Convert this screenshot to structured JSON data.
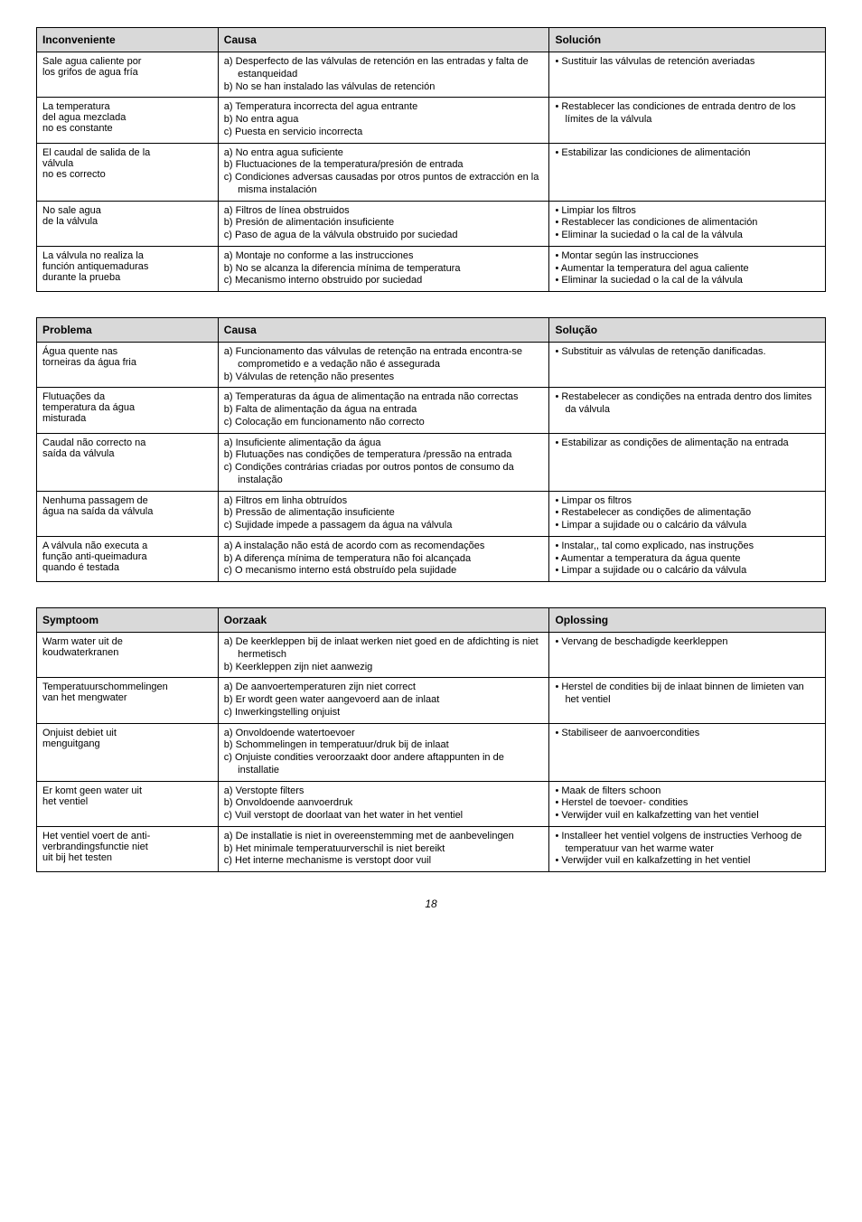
{
  "tables": [
    {
      "headers": [
        "Inconveniente",
        "Causa",
        "Solución"
      ],
      "rows": [
        {
          "c1": [
            "Sale agua caliente por",
            "los grifos de agua fría"
          ],
          "c2": [
            "a) Desperfecto de las válvulas de retención en las entradas y falta de estanqueidad",
            "b) No se han instalado las válvulas de retención"
          ],
          "c3": [
            "Sustituir las válvulas de retención averiadas"
          ]
        },
        {
          "c1": [
            "La temperatura",
            "del agua mezclada",
            "no es constante"
          ],
          "c2": [
            "a) Temperatura incorrecta del agua entrante",
            "b) No entra agua",
            "c) Puesta en servicio incorrecta"
          ],
          "c3": [
            "Restablecer las condiciones de entrada dentro de los límites de la válvula"
          ]
        },
        {
          "c1": [
            "El caudal de salida de la",
            "válvula",
            "no es correcto"
          ],
          "c2": [
            "a) No entra agua suficiente",
            "b) Fluctuaciones de la temperatura/presión de entrada",
            "c) Condiciones adversas causadas por otros puntos de extracción en la misma instalación"
          ],
          "c3": [
            "Estabilizar las condiciones de alimentación"
          ]
        },
        {
          "c1": [
            "No sale agua",
            "de la válvula"
          ],
          "c2": [
            "a) Filtros de línea obstruidos",
            "b) Presión de alimentación insuficiente",
            "c) Paso de agua de la válvula obstruido por suciedad"
          ],
          "c3": [
            "Limpiar los filtros",
            "Restablecer las condiciones de alimentación",
            "Eliminar la suciedad o la cal de la válvula"
          ]
        },
        {
          "c1": [
            "La válvula no realiza la",
            "función antiquemaduras",
            "durante la prueba"
          ],
          "c2": [
            "a) Montaje no conforme a las instrucciones",
            "b) No se alcanza la diferencia mínima de temperatura",
            "c) Mecanismo interno obstruido por suciedad"
          ],
          "c3": [
            "Montar según las instrucciones",
            "Aumentar la temperatura del agua caliente",
            "Eliminar la suciedad o la cal de la válvula"
          ]
        }
      ]
    },
    {
      "headers": [
        "Problema",
        "Causa",
        "Solução"
      ],
      "rows": [
        {
          "c1": [
            "Água quente nas",
            "torneiras da água fria"
          ],
          "c2": [
            "a) Funcionamento das válvulas de retenção na entrada encontra-se comprometido e a vedação não é assegurada",
            "b) Válvulas de retenção não presentes"
          ],
          "c3": [
            "Substituir as válvulas de retenção danificadas."
          ]
        },
        {
          "c1": [
            "Flutuações da",
            "temperatura da água",
            "misturada"
          ],
          "c2": [
            "a) Temperaturas da água de alimentação na entrada não correctas",
            "b) Falta de alimentação da água na entrada",
            "c) Colocação em funcionamento não correcto"
          ],
          "c3": [
            "Restabelecer as condições na entrada dentro dos limites da válvula"
          ]
        },
        {
          "c1": [
            "Caudal não correcto na",
            "saída da válvula"
          ],
          "c2": [
            "a) Insuficiente alimentação da água",
            "b) Flutuações nas condições de temperatura /pressão na entrada",
            "c) Condições contrárias criadas por outros pontos de consumo da instalação"
          ],
          "c3": [
            "Estabilizar as condições de alimentação na entrada"
          ]
        },
        {
          "c1": [
            "Nenhuma passagem de",
            "água na saída da válvula"
          ],
          "c2": [
            "a) Filtros em linha obtruídos",
            "b) Pressão de alimentação insuficiente",
            "c) Sujidade impede a passagem da água na válvula"
          ],
          "c3": [
            "Limpar os filtros",
            "Restabelecer as condições de alimentação",
            "Limpar a sujidade ou o calcário da válvula"
          ]
        },
        {
          "c1": [
            "A válvula não executa a",
            "função anti-queimadura",
            "quando é testada"
          ],
          "c2": [
            "a) A instalação não está de acordo com as recomendações",
            "b) A diferença mínima de temperatura não foi alcançada",
            "c) O mecanismo interno está obstruído pela sujidade"
          ],
          "c3": [
            "Instalar,, tal como explicado, nas instruções",
            "Aumentar a temperatura da água quente",
            "Limpar a sujidade ou o calcário da válvula"
          ]
        }
      ]
    },
    {
      "headers": [
        "Symptoom",
        "Oorzaak",
        "Oplossing"
      ],
      "rows": [
        {
          "c1": [
            "Warm water uit de",
            "koudwaterkranen"
          ],
          "c2": [
            "a) De keerkleppen bij de inlaat werken niet goed en de afdichting is niet hermetisch",
            "b) Keerkleppen zijn niet aanwezig"
          ],
          "c3": [
            "Vervang de beschadigde keerkleppen"
          ]
        },
        {
          "c1": [
            "Temperatuurschommelingen",
            "van het mengwater"
          ],
          "c2": [
            "a) De aanvoertemperaturen zijn niet correct",
            "b) Er wordt geen water aangevoerd aan de inlaat",
            "c) Inwerkingstelling onjuist"
          ],
          "c3": [
            "Herstel de condities bij de inlaat binnen de limieten van het ventiel"
          ]
        },
        {
          "c1": [
            "Onjuist debiet uit",
            "menguitgang"
          ],
          "c2": [
            "a) Onvoldoende watertoevoer",
            "b) Schommelingen in temperatuur/druk bij de inlaat",
            "c) Onjuiste condities veroorzaakt door andere aftappunten in de installatie"
          ],
          "c3": [
            "Stabiliseer de aanvoercondities"
          ]
        },
        {
          "c1": [
            "Er komt geen water uit",
            "het ventiel"
          ],
          "c2": [
            "a) Verstopte filters",
            "b) Onvoldoende aanvoerdruk",
            "c) Vuil verstopt de doorlaat van het water in het ventiel"
          ],
          "c3": [
            "Maak de filters schoon",
            "Herstel de toevoer- condities",
            "Verwijder vuil en kalkafzetting van het ventiel"
          ]
        },
        {
          "c1": [
            "Het ventiel voert de anti-",
            "verbrandingsfunctie niet",
            "uit bij het testen"
          ],
          "c2": [
            "a) De installatie is niet in overeenstemming met de aanbevelingen",
            "b) Het minimale temperatuurverschil is niet bereikt",
            "c) Het interne mechanisme is verstopt door vuil"
          ],
          "c3": [
            "Installeer het ventiel volgens de instructies Verhoog de temperatuur van het warme water",
            "Verwijder vuil en kalkafzetting in het ventiel"
          ]
        }
      ]
    }
  ],
  "page_number": "18"
}
